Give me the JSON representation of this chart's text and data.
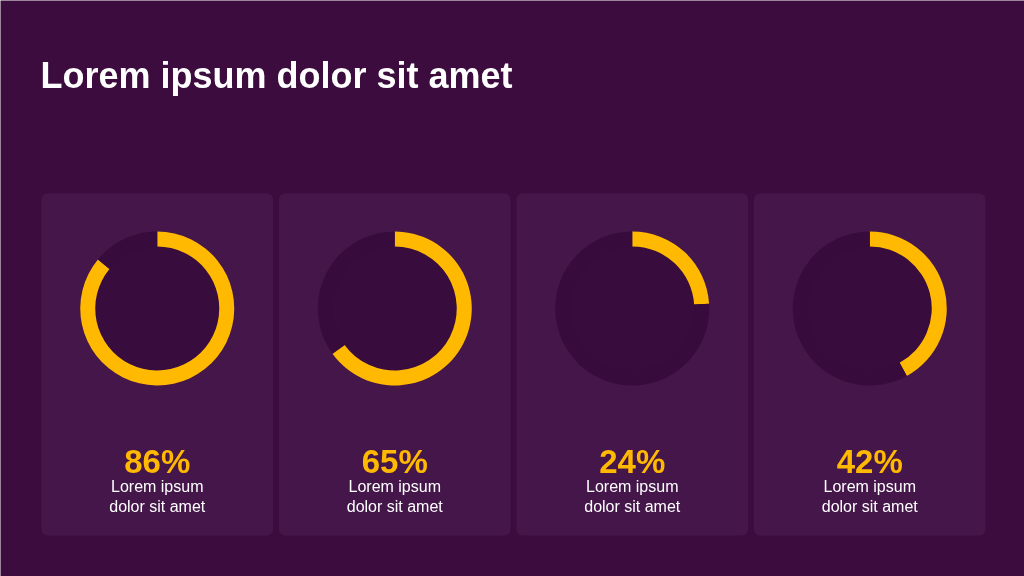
{
  "chart_data": [
    {
      "type": "donut",
      "title": "Lorem ipsum dolor sit amet",
      "categories": [
        null,
        null
      ],
      "values": [
        86,
        14
      ],
      "colors": [
        "#ffb900",
        "#370b3b"
      ],
      "annotations": [
        "86%",
        "Lorem ipsum dolor sit amet"
      ]
    },
    {
      "type": "donut",
      "categories": [
        null,
        null
      ],
      "values": [
        65,
        35
      ],
      "colors": [
        "#ffb900",
        "#370b3b"
      ],
      "annotations": [
        "65%",
        "Lorem ipsum dolor sit amet"
      ]
    },
    {
      "type": "donut",
      "categories": [
        null,
        null
      ],
      "values": [
        24,
        76
      ],
      "colors": [
        "#ffb900",
        "#370b3b"
      ],
      "annotations": [
        "24%",
        "Lorem ipsum dolor sit amet"
      ]
    },
    {
      "type": "donut",
      "categories": [
        null,
        null
      ],
      "values": [
        42,
        58
      ],
      "colors": [
        "#ffb900",
        "#370b3b"
      ],
      "annotations": [
        "42%",
        "Lorem ipsum dolor sit amet"
      ]
    }
  ]
}
